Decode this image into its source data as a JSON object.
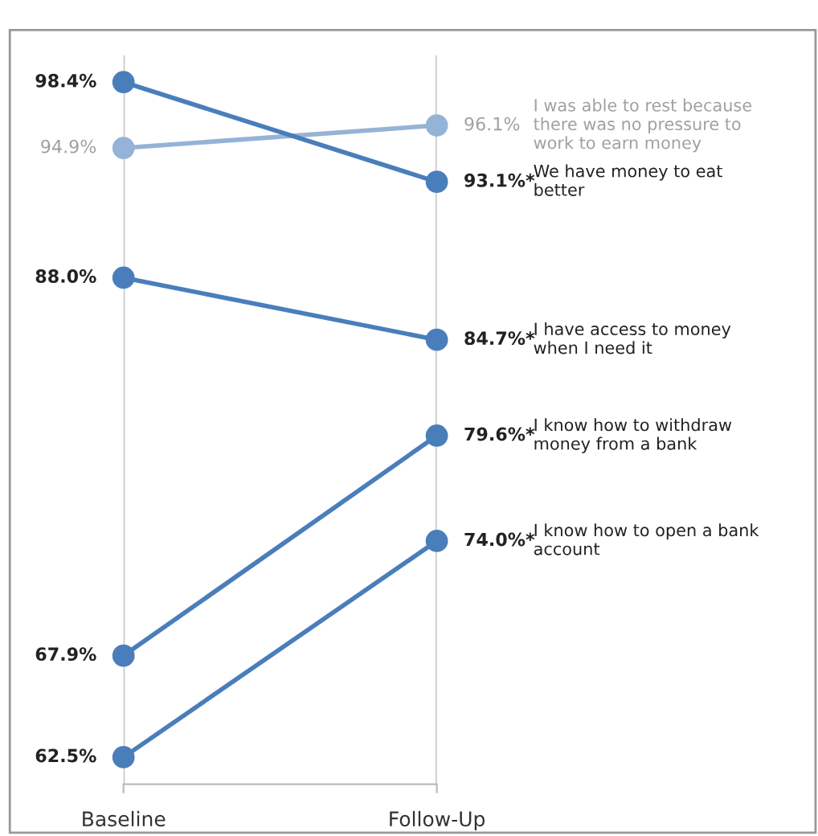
{
  "chart_data": {
    "type": "line",
    "categories": [
      "Baseline",
      "Follow-Up"
    ],
    "marker": "circle",
    "line_style": "solid",
    "grid": "x",
    "legend": false,
    "series": [
      {
        "name": "I was able to rest because there was no pressure to work to earn money",
        "color": "#95b3d7",
        "values": [
          94.9,
          96.1
        ],
        "value_labels": [
          "94.9%",
          "96.1%"
        ]
      },
      {
        "name": "We have money to eat better",
        "color": "#4a7ebb",
        "values": [
          98.4,
          93.1
        ],
        "value_labels": [
          "98.4%",
          "93.1%*"
        ]
      },
      {
        "name": "I have access to money when I need it",
        "color": "#4a7ebb",
        "values": [
          88.0,
          84.7
        ],
        "value_labels": [
          "88.0%",
          "84.7%*"
        ]
      },
      {
        "name": "I know how to withdraw money from a bank",
        "color": "#4a7ebb",
        "values": [
          67.9,
          79.6
        ],
        "value_labels": [
          "67.9%",
          "79.6%*"
        ]
      },
      {
        "name": "I know how to open a bank account",
        "color": "#4a7ebb",
        "values": [
          62.5,
          74.0
        ],
        "value_labels": [
          "62.5%",
          "74.0%*"
        ]
      }
    ]
  }
}
